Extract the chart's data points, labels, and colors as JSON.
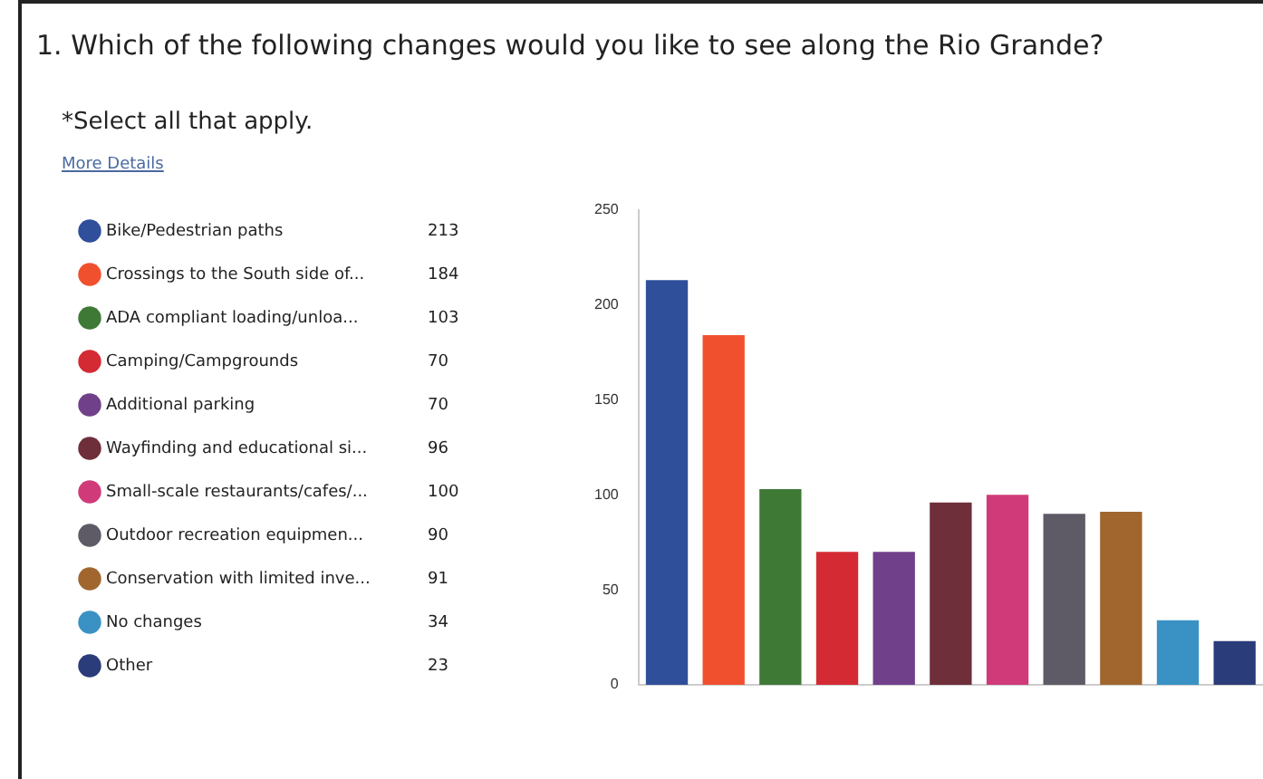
{
  "chart_data": {
    "type": "bar",
    "title": "1. Which of the following changes would you like to see along the Rio Grande?",
    "subtitle": "*Select all that apply.",
    "annotations": [
      "More Details",
      "213",
      "184",
      "103",
      "70",
      "70",
      "96",
      "100",
      "90",
      "91",
      "34",
      "23"
    ],
    "categories": [
      null,
      null,
      null,
      null,
      null,
      null,
      null,
      null,
      null,
      null,
      null
    ],
    "series": [
      {
        "name": "Bike/Pedestrian paths",
        "color": "#2f4f9a",
        "values": [
          213,
          null,
          null,
          null,
          null,
          null,
          null,
          null,
          null,
          null,
          null
        ]
      },
      {
        "name": "Crossings to the South side of...",
        "color": "#f0502e",
        "values": [
          null,
          184,
          null,
          null,
          null,
          null,
          null,
          null,
          null,
          null,
          null
        ]
      },
      {
        "name": "ADA compliant loading/unloa...",
        "color": "#3e7a36",
        "values": [
          null,
          null,
          103,
          null,
          null,
          null,
          null,
          null,
          null,
          null,
          null
        ]
      },
      {
        "name": "Camping/Campgrounds",
        "color": "#d42a34",
        "values": [
          null,
          null,
          null,
          70,
          null,
          null,
          null,
          null,
          null,
          null,
          null
        ]
      },
      {
        "name": "Additional parking",
        "color": "#70408a",
        "values": [
          null,
          null,
          null,
          null,
          70,
          null,
          null,
          null,
          null,
          null,
          null
        ]
      },
      {
        "name": "Wayfinding and educational si...",
        "color": "#6e2e3a",
        "values": [
          null,
          null,
          null,
          null,
          null,
          96,
          null,
          null,
          null,
          null,
          null
        ]
      },
      {
        "name": "Small-scale restaurants/cafes/...",
        "color": "#d03a78",
        "values": [
          null,
          null,
          null,
          null,
          null,
          null,
          100,
          null,
          null,
          null,
          null
        ]
      },
      {
        "name": "Outdoor recreation equipmen...",
        "color": "#5e5a66",
        "values": [
          null,
          null,
          null,
          null,
          null,
          null,
          null,
          90,
          null,
          null,
          null
        ]
      },
      {
        "name": "Conservation with limited inve...",
        "color": "#a0662e",
        "values": [
          null,
          null,
          null,
          null,
          null,
          null,
          null,
          null,
          91,
          null,
          null
        ]
      },
      {
        "name": "No changes",
        "color": "#3a92c4",
        "values": [
          null,
          null,
          null,
          null,
          null,
          null,
          null,
          null,
          null,
          34,
          null
        ]
      },
      {
        "name": "Other",
        "color": "#2a3c7a",
        "values": [
          null,
          null,
          null,
          null,
          null,
          null,
          null,
          null,
          null,
          null,
          23
        ]
      }
    ],
    "ylim": [
      0,
      250
    ],
    "yticks": [
      0,
      50,
      100,
      150,
      200,
      250
    ],
    "grid": false,
    "tick_labels": "y",
    "legend": "left"
  }
}
